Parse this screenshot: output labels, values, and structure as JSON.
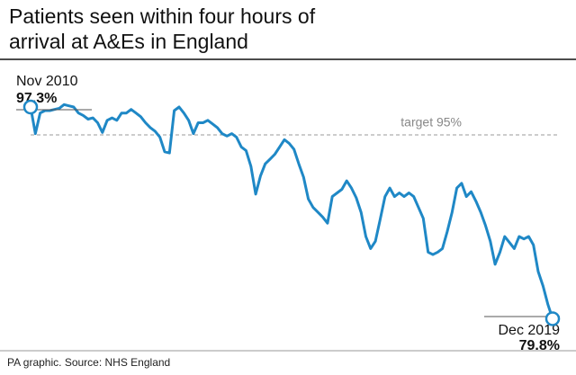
{
  "chart_data": {
    "type": "line",
    "title": "Patients seen within four hours of arrival at A&Es in England",
    "source": "PA graphic. Source: NHS England",
    "categories": [
      "Nov 2010",
      null,
      null,
      null,
      null,
      null,
      null,
      null,
      null,
      null,
      null,
      null,
      null,
      null,
      null,
      null,
      null,
      null,
      null,
      null,
      null,
      null,
      null,
      null,
      null,
      null,
      null,
      null,
      null,
      null,
      null,
      null,
      null,
      null,
      null,
      null,
      null,
      null,
      null,
      null,
      null,
      null,
      null,
      null,
      null,
      null,
      null,
      null,
      null,
      null,
      null,
      null,
      null,
      null,
      null,
      null,
      null,
      null,
      null,
      null,
      null,
      null,
      null,
      null,
      null,
      null,
      null,
      null,
      null,
      null,
      null,
      null,
      null,
      null,
      null,
      null,
      null,
      null,
      null,
      null,
      null,
      null,
      null,
      null,
      null,
      null,
      null,
      null,
      null,
      null,
      null,
      null,
      null,
      null,
      null,
      null,
      null,
      null,
      null,
      null,
      null,
      null,
      null,
      null,
      null,
      null,
      null,
      null,
      null,
      "Dec 2019"
    ],
    "values": [
      97.3,
      95.1,
      96.8,
      97.0,
      97.0,
      97.1,
      97.2,
      97.5,
      97.4,
      97.3,
      96.8,
      96.6,
      96.3,
      96.4,
      96.0,
      95.2,
      96.2,
      96.4,
      96.2,
      96.8,
      96.8,
      97.1,
      96.8,
      96.5,
      96.0,
      95.6,
      95.3,
      94.8,
      93.6,
      93.5,
      97.0,
      97.3,
      96.8,
      96.2,
      95.1,
      96.0,
      96.0,
      96.2,
      95.9,
      95.6,
      95.1,
      94.9,
      95.1,
      94.8,
      94.0,
      93.7,
      92.4,
      90.1,
      91.6,
      92.6,
      93.0,
      93.4,
      94.0,
      94.6,
      94.3,
      93.8,
      92.6,
      91.5,
      89.7,
      89.0,
      88.6,
      88.2,
      87.7,
      89.9,
      90.2,
      90.5,
      91.2,
      90.6,
      89.8,
      88.6,
      86.6,
      85.6,
      86.2,
      88.0,
      89.9,
      90.6,
      89.9,
      90.2,
      89.9,
      90.2,
      89.9,
      89.0,
      88.1,
      85.3,
      85.1,
      85.3,
      85.6,
      87.0,
      88.6,
      90.6,
      91.0,
      89.9,
      90.3,
      89.5,
      88.6,
      87.5,
      86.2,
      84.3,
      85.3,
      86.6,
      86.1,
      85.6,
      86.6,
      86.4,
      86.6,
      85.9,
      83.7,
      82.5,
      81.0,
      79.8
    ],
    "value_labels": [
      "97.3%",
      null,
      null,
      null,
      null,
      null,
      null,
      null,
      null,
      null,
      null,
      null,
      null,
      null,
      null,
      null,
      null,
      null,
      null,
      null,
      null,
      null,
      null,
      null,
      null,
      null,
      null,
      null,
      null,
      null,
      null,
      null,
      null,
      null,
      null,
      null,
      null,
      null,
      null,
      null,
      null,
      null,
      null,
      null,
      null,
      null,
      null,
      null,
      null,
      null,
      null,
      null,
      null,
      null,
      null,
      null,
      null,
      null,
      null,
      null,
      null,
      null,
      null,
      null,
      null,
      null,
      null,
      null,
      null,
      null,
      null,
      null,
      null,
      null,
      null,
      null,
      null,
      null,
      null,
      null,
      null,
      null,
      null,
      null,
      null,
      null,
      null,
      null,
      null,
      null,
      null,
      null,
      null,
      null,
      null,
      null,
      null,
      null,
      null,
      null,
      null,
      null,
      null,
      null,
      null,
      null,
      null,
      null,
      null,
      "79.8%"
    ],
    "color": "#1f88c6",
    "ylim": [
      77.9,
      100.2
    ],
    "target": {
      "value": 95,
      "label": "target 95%"
    }
  }
}
